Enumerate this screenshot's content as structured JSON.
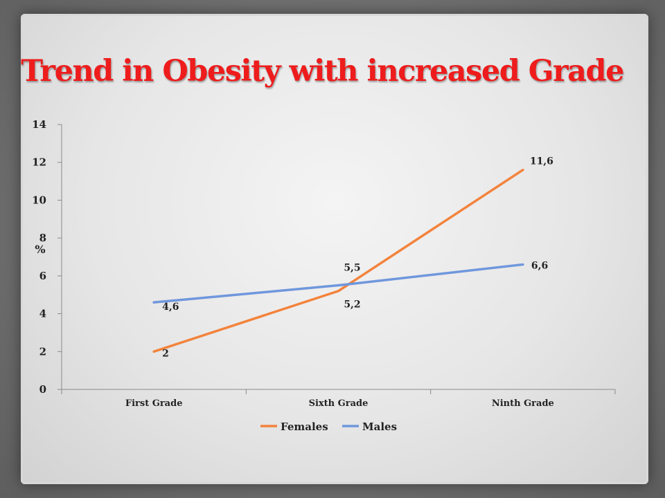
{
  "slide": {
    "title": "Trend in Obesity with increased Grade"
  },
  "chart_data": {
    "type": "line",
    "title": "Trend in Obesity with increased Grade",
    "ylabel": "%",
    "xlabel": "",
    "categories": [
      "First Grade",
      "Sixth Grade",
      "Ninth Grade"
    ],
    "ylim": [
      0,
      14
    ],
    "yticks": [
      0,
      2,
      4,
      6,
      8,
      10,
      12,
      14
    ],
    "grid": false,
    "legend": "bottom",
    "series": [
      {
        "name": "Females",
        "color": "#f3833c",
        "values": [
          2,
          5.2,
          11.6
        ],
        "labels": [
          "2",
          "5,2",
          "11,6"
        ]
      },
      {
        "name": "Males",
        "color": "#6f97dc",
        "values": [
          4.6,
          5.5,
          6.6
        ],
        "labels": [
          "4,6",
          "5,5",
          "6,6"
        ]
      }
    ]
  }
}
